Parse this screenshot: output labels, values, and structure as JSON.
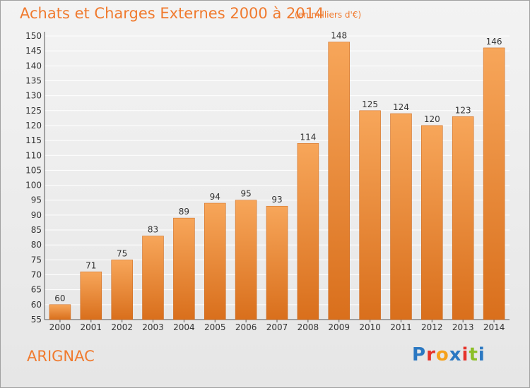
{
  "header": {
    "title": "Achats et Charges Externes 2000 à 2014",
    "unit_note": "(en milliers d'€)"
  },
  "footer": {
    "place": "ARIGNAC",
    "logo_text": "Proxiti",
    "logo_colors": [
      "#2b78c2",
      "#e6332a",
      "#f6a11a",
      "#2b78c2",
      "#e6332a",
      "#8cbf26",
      "#2b78c2"
    ]
  },
  "colors": {
    "accent": "#f07a2e",
    "bar_top": "#f7a65a",
    "bar_bottom": "#d96f1c",
    "grid": "#ffffff",
    "text": "#333333"
  },
  "chart_data": {
    "type": "bar",
    "categories": [
      "2000",
      "2001",
      "2002",
      "2003",
      "2004",
      "2005",
      "2006",
      "2007",
      "2008",
      "2009",
      "2010",
      "2011",
      "2012",
      "2013",
      "2014"
    ],
    "values": [
      60,
      71,
      75,
      83,
      89,
      94,
      95,
      93,
      114,
      148,
      125,
      124,
      120,
      123,
      146
    ],
    "data_labels": [
      "60",
      "71",
      "75",
      "83",
      "89",
      "94",
      "95",
      "93",
      "114",
      "148",
      "125",
      "124",
      "120",
      "123",
      "146"
    ],
    "yticks": [
      "55",
      "60",
      "65",
      "70",
      "75",
      "80",
      "85",
      "90",
      "95",
      "100",
      "105",
      "110",
      "115",
      "120",
      "125",
      "130",
      "135",
      "140",
      "145",
      "150"
    ],
    "ylim": [
      55,
      150
    ],
    "ystep": 5,
    "grid": true
  }
}
